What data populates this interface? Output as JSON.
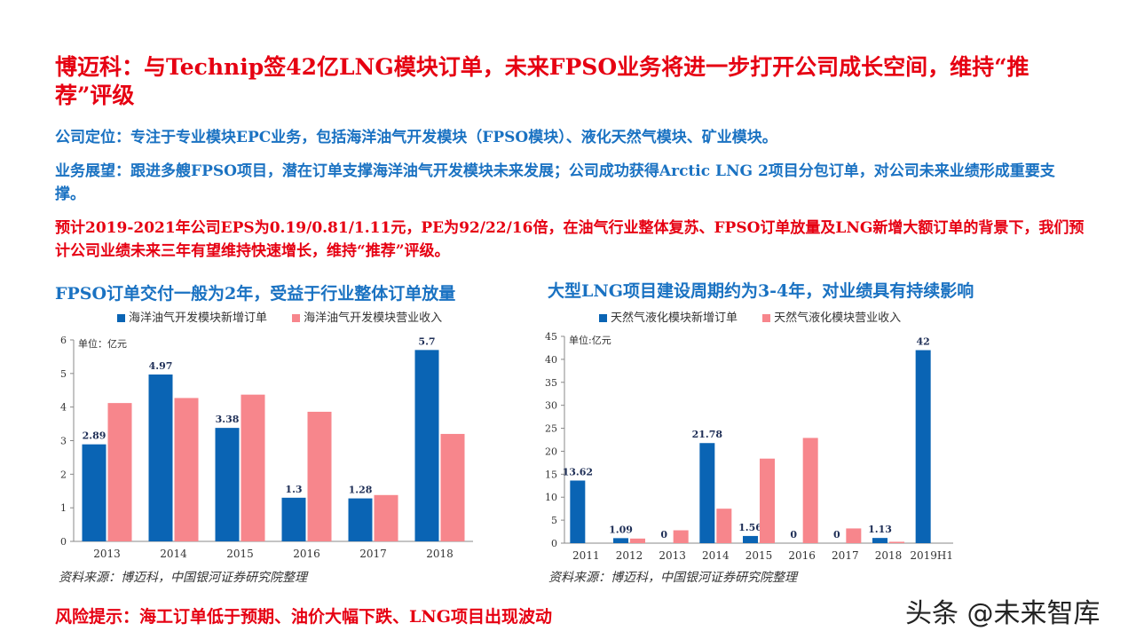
{
  "slide": {
    "title": "博迈科：与Technip签42亿LNG模块订单，未来FPSO业务将进一步打开公司成长空间，维持“推荐”评级",
    "para1": "公司定位：专注于专业模块EPC业务，包括海洋油气开发模块（FPSO模块）、液化天然气模块、矿业模块。",
    "para2": "业务展望：跟进多艘FPSO项目，潜在订单支撑海洋油气开发模块未来发展；公司成功获得Arctic LNG 2项目分包订单，对公司未来业绩形成重要支撑。",
    "para3": "预计2019-2021年公司EPS为0.19/0.81/1.11元，PE为92/22/16倍，在油气行业整体复苏、FPSO订单放量及LNG新增大额订单的背景下，我们预计公司业绩未来三年有望维持快速增长，维持“推荐”评级。",
    "risk": "风险提示：海工订单低于预期、油价大幅下跌、LNG项目出现波动",
    "watermark": "头条 @未来智库"
  },
  "colors": {
    "primary": "#0a64b4",
    "secondary": "#f7868c",
    "title_red": "#e60012",
    "heading_blue": "#1a72c2"
  },
  "chart_data": [
    {
      "type": "bar",
      "title": "FPSO订单交付一般为2年，受益于行业整体订单放量",
      "unit_note": "单位：亿元",
      "categories": [
        "2013",
        "2014",
        "2015",
        "2016",
        "2017",
        "2018"
      ],
      "series": [
        {
          "name": "海洋油气开发模块新增订单",
          "values": [
            2.89,
            4.97,
            3.38,
            1.3,
            1.28,
            5.7
          ],
          "labels": [
            "2.89",
            "4.97",
            "3.38",
            "1.3",
            "1.28",
            "5.7"
          ]
        },
        {
          "name": "海洋油气开发模块营业收入",
          "values": [
            4.12,
            4.27,
            4.37,
            3.86,
            1.38,
            3.2
          ]
        }
      ],
      "ylim": [
        0,
        6
      ],
      "yticks": [
        "0",
        "1",
        "2",
        "3",
        "4",
        "5",
        "6"
      ],
      "source": "资料来源：博迈科，中国银河证券研究院整理"
    },
    {
      "type": "bar",
      "title": "大型LNG项目建设周期约为3-4年，对业绩具有持续影响",
      "unit_note": "单位:亿元",
      "categories": [
        "2011",
        "2012",
        "2013",
        "2014",
        "2015",
        "2016",
        "2017",
        "2018",
        "2019H1"
      ],
      "series": [
        {
          "name": "天然气液化模块新增订单",
          "values": [
            13.62,
            1.09,
            0,
            21.78,
            1.56,
            0,
            0,
            1.13,
            42
          ],
          "labels": [
            "13.62",
            "1.09",
            "0",
            "21.78",
            "1.56",
            "0",
            "0",
            "1.13",
            "42"
          ]
        },
        {
          "name": "天然气液化模块营业收入",
          "values": [
            0,
            1.0,
            2.8,
            7.5,
            18.4,
            22.9,
            3.2,
            0.3,
            0
          ]
        }
      ],
      "ylim": [
        0,
        45
      ],
      "yticks": [
        "0",
        "5",
        "10",
        "15",
        "20",
        "25",
        "30",
        "35",
        "40",
        "45"
      ],
      "source": "资料来源：博迈科，中国银河证券研究院整理"
    }
  ]
}
